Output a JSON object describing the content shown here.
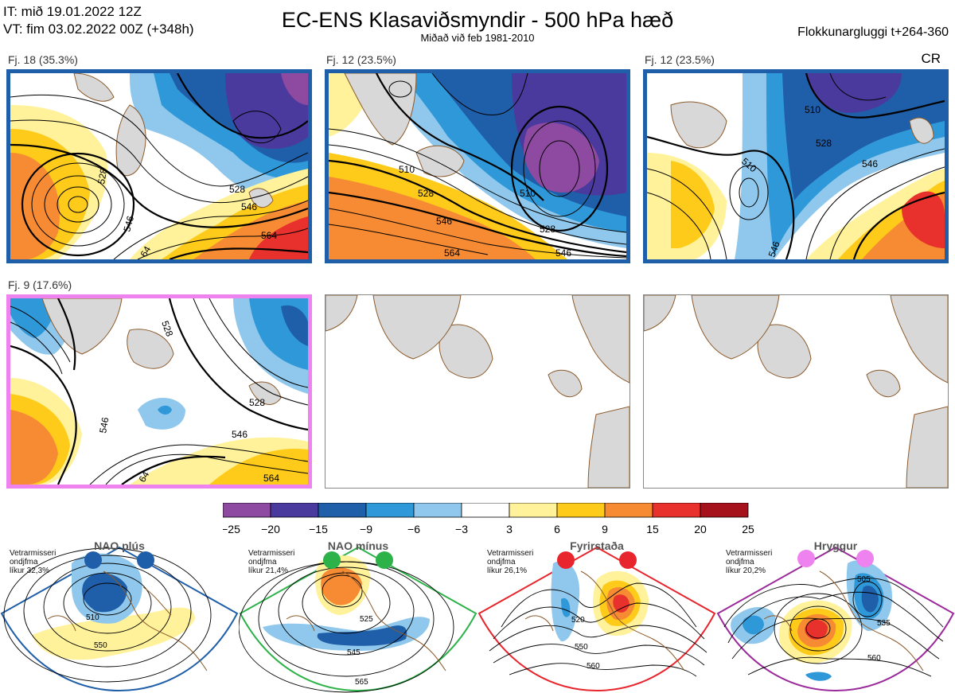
{
  "header": {
    "it_line": "IT: mið 19.01.2022 12Z",
    "vt_line": "VT: fim 03.02.2022 00Z  (+348h)",
    "title": "EC-ENS Klasaviðsmyndir - 500 hPa hæð",
    "subtitle": "Miðað við feb 1981-2010",
    "window": "Flokkunargluggi t+264-360",
    "cr": "CR"
  },
  "colors": {
    "blue_border": "#1f5ea8",
    "pink_border": "#ee82ee",
    "land": "#d8d8d8",
    "coast": "#8b5a2b",
    "nao_plus": "#1f5ea8",
    "nao_minus": "#2db24a",
    "blocking": "#e8242c",
    "ridge": "#ee82ee"
  },
  "clusters": [
    {
      "label": "Fj. 18 (35.3%)",
      "contours": [
        "528",
        "546",
        "528",
        "546",
        "564",
        "64"
      ]
    },
    {
      "label": "Fj. 12 (23.5%)",
      "contours": [
        "510",
        "528",
        "546",
        "564",
        "510",
        "528",
        "546"
      ]
    },
    {
      "label": "Fj. 12 (23.5%)",
      "contours": [
        "510",
        "528",
        "546",
        "510",
        "546"
      ]
    },
    {
      "label": "Fj. 9 (17.6%)",
      "contours": [
        "528",
        "546",
        "528",
        "546",
        "564",
        "64"
      ]
    }
  ],
  "colorbar": {
    "colors": [
      "#8e4aa0",
      "#4b3a9e",
      "#1f5ea8",
      "#2f98d8",
      "#8fc8ec",
      "#ffffff",
      "#fff29a",
      "#fecb1a",
      "#f68b33",
      "#e8302c",
      "#a6121c"
    ],
    "ticks": [
      "−25",
      "−20",
      "−15",
      "−9",
      "−6",
      "−3",
      "3",
      "6",
      "9",
      "15",
      "20",
      "25"
    ]
  },
  "regimes": [
    {
      "name": "NAO plús",
      "prob": [
        "Vetrarmisseri",
        "ondjfma",
        "líkur 32,3%"
      ],
      "labels": [
        "510",
        "550"
      ]
    },
    {
      "name": "NAO mínus",
      "prob": [
        "Vetrarmisseri",
        "ondjfma",
        "líkur 21,4%"
      ],
      "labels": [
        "525",
        "545",
        "565"
      ]
    },
    {
      "name": "Fyrirstaða",
      "prob": [
        "Vetrarmisseri",
        "ondjfma",
        "líkur 26,1%"
      ],
      "labels": [
        "520",
        "550",
        "560"
      ]
    },
    {
      "name": "Hryggur",
      "prob": [
        "Vetrarmisseri",
        "ondjfma",
        "líkur 20,2%"
      ],
      "labels": [
        "505",
        "535",
        "560"
      ]
    }
  ]
}
